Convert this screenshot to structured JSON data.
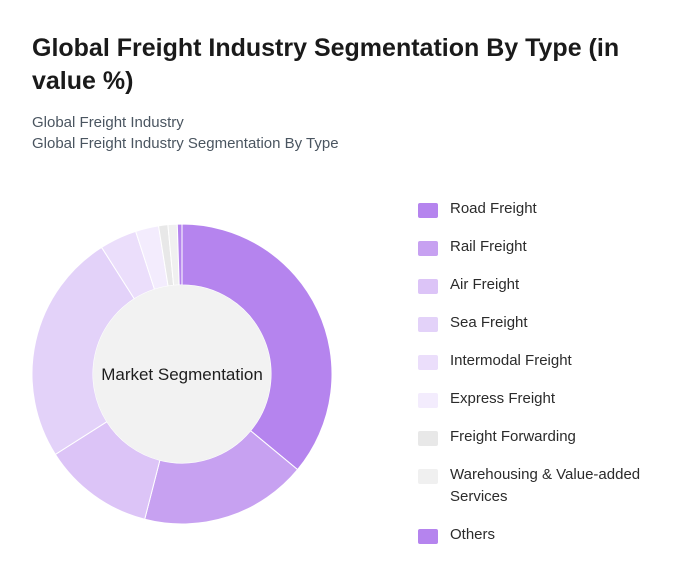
{
  "header": {
    "title": "Global Freight Industry Segmentation By Type (in value %)",
    "subtitle_line1": "Global Freight Industry",
    "subtitle_line2": "Global Freight Industry Segmentation By Type"
  },
  "chart_data": {
    "type": "pie",
    "variant": "donut",
    "center_label": "Market Segmentation",
    "legend_position": "right",
    "categories": [
      "Road Freight",
      "Rail Freight",
      "Air Freight",
      "Sea Freight",
      "Intermodal Freight",
      "Express Freight",
      "Freight Forwarding",
      "Warehousing & Value-added Services",
      "Others"
    ],
    "values": [
      36,
      18,
      12,
      25,
      4,
      2.5,
      1,
      1,
      0.5
    ],
    "colors": [
      "#b584ee",
      "#c7a1f1",
      "#dcc4f7",
      "#e3d2f9",
      "#ebdefb",
      "#f3ecfd",
      "#e8e8e8",
      "#f0f0f0",
      "#b584ee"
    ]
  }
}
